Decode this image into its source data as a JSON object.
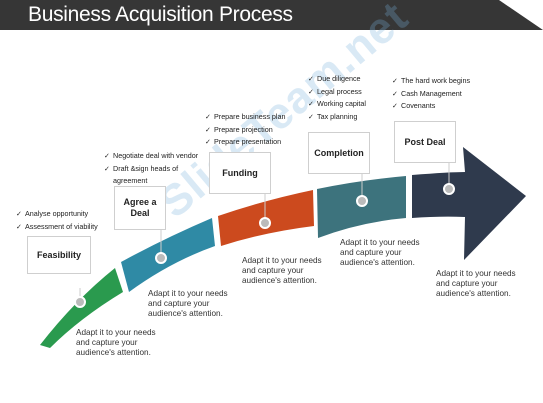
{
  "title": "Business Acquisition Process",
  "watermark": "SlideTeam.net",
  "colors": {
    "feasibility": "#2a9a4e",
    "agree": "#2f8aa5",
    "funding": "#cc4a1e",
    "completion": "#3d737d",
    "postdeal": "#2f3a4d"
  },
  "steps": [
    {
      "label": "Feasibility",
      "bullets": [
        "Analyse opportunity",
        "Assessment of viability"
      ],
      "desc": "Adapt it to your needs\nand capture your\naudience's attention."
    },
    {
      "label": "Agree a\nDeal",
      "bullets": [
        "Negotiate deal with vendor",
        "Draft &sign heads of",
        "agreement"
      ],
      "desc": "Adapt it to your needs\nand capture your\naudience's attention."
    },
    {
      "label": "Funding",
      "bullets": [
        "Prepare business plan",
        "Prepare projection",
        "Prepare presentation"
      ],
      "desc": "Adapt it to your needs\nand capture your\naudience's attention."
    },
    {
      "label": "Completion",
      "bullets": [
        "Due diligence",
        "Legal process",
        "Working capital",
        "Tax planning"
      ],
      "desc": "Adapt it to your needs\nand capture your\naudience's attention."
    },
    {
      "label": "Post Deal",
      "bullets": [
        "The hard work begins",
        "Cash Management",
        "Covenants"
      ],
      "desc": "Adapt it to your needs\nand capture your\naudience's attention."
    }
  ]
}
